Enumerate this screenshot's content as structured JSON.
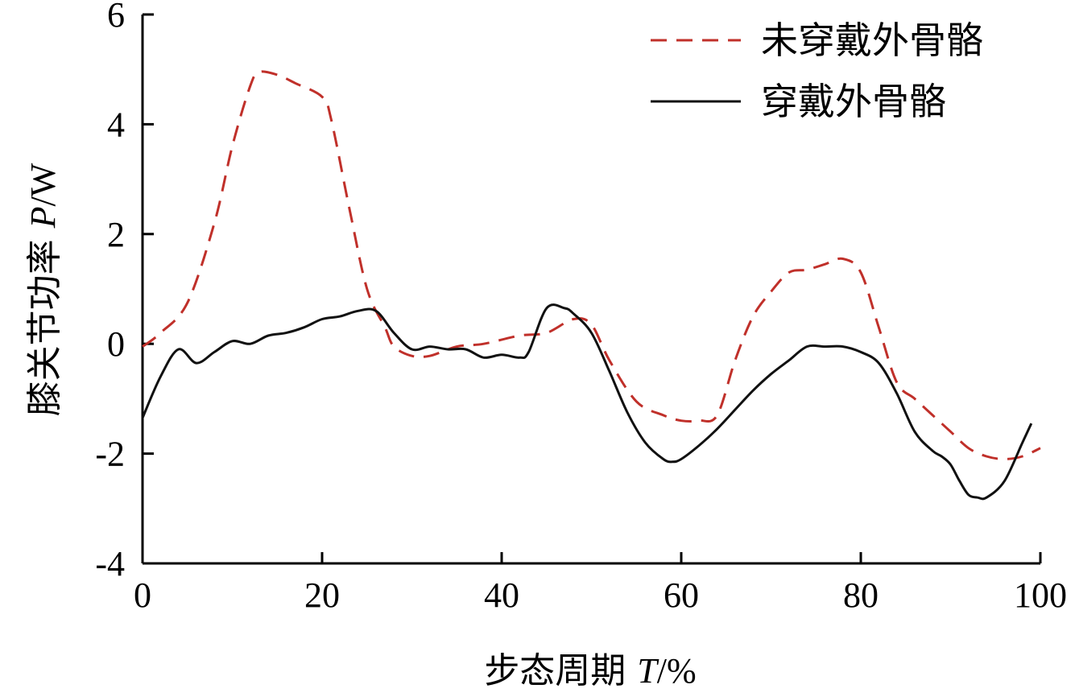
{
  "chart_data": {
    "type": "line",
    "xlabel": "步态周期 T/%",
    "ylabel": "膝关节功率 P/W",
    "xlim": [
      0,
      100
    ],
    "ylim": [
      -4,
      6
    ],
    "x_ticks": [
      0,
      20,
      40,
      60,
      80,
      100
    ],
    "y_ticks": [
      -4,
      -2,
      0,
      2,
      4,
      6
    ],
    "grid": false,
    "legend_position": "top-right",
    "series": [
      {
        "name": "未穿戴外骨骼",
        "color": "#c0302a",
        "style": "dashed",
        "x": [
          0,
          2,
          5,
          8,
          10,
          12,
          13,
          15,
          17,
          20,
          21,
          23,
          25,
          27,
          28,
          30,
          32,
          35,
          38,
          42,
          45,
          48,
          50,
          52,
          55,
          58,
          60,
          62,
          64,
          66,
          68,
          70,
          72,
          74,
          76,
          78,
          80,
          82,
          84,
          86,
          88,
          90,
          92,
          94,
          96,
          98,
          100
        ],
        "y": [
          -0.05,
          0.2,
          0.75,
          2.2,
          3.6,
          4.7,
          4.95,
          4.9,
          4.75,
          4.5,
          4.1,
          2.5,
          1.0,
          0.3,
          -0.05,
          -0.22,
          -0.22,
          -0.05,
          0.0,
          0.15,
          0.2,
          0.45,
          0.35,
          -0.3,
          -1.05,
          -1.3,
          -1.4,
          -1.4,
          -1.3,
          -0.3,
          0.5,
          0.95,
          1.3,
          1.35,
          1.45,
          1.55,
          1.3,
          0.3,
          -0.7,
          -1.0,
          -1.3,
          -1.6,
          -1.9,
          -2.05,
          -2.1,
          -2.05,
          -1.9
        ]
      },
      {
        "name": "穿戴外骨骼",
        "color": "#111111",
        "style": "solid",
        "x": [
          0,
          2,
          4,
          6,
          8,
          10,
          12,
          14,
          16,
          18,
          20,
          22,
          24,
          26,
          28,
          30,
          32,
          34,
          36,
          38,
          40,
          42,
          43,
          45,
          47,
          48,
          50,
          52,
          54,
          56,
          58,
          59,
          60,
          62,
          64,
          66,
          68,
          70,
          72,
          74,
          76,
          78,
          80,
          82,
          84,
          86,
          88,
          89,
          90,
          91,
          92,
          93,
          94,
          96,
          98,
          99
        ],
        "y": [
          -1.35,
          -0.6,
          -0.1,
          -0.35,
          -0.15,
          0.05,
          0.0,
          0.15,
          0.2,
          0.3,
          0.45,
          0.5,
          0.6,
          0.6,
          0.2,
          -0.1,
          -0.05,
          -0.1,
          -0.1,
          -0.25,
          -0.2,
          -0.25,
          -0.15,
          0.65,
          0.65,
          0.55,
          0.2,
          -0.5,
          -1.25,
          -1.8,
          -2.1,
          -2.15,
          -2.1,
          -1.85,
          -1.55,
          -1.2,
          -0.85,
          -0.55,
          -0.3,
          -0.05,
          -0.05,
          -0.05,
          -0.15,
          -0.35,
          -0.9,
          -1.6,
          -1.95,
          -2.05,
          -2.2,
          -2.5,
          -2.75,
          -2.8,
          -2.8,
          -2.5,
          -1.8,
          -1.45
        ]
      }
    ]
  }
}
